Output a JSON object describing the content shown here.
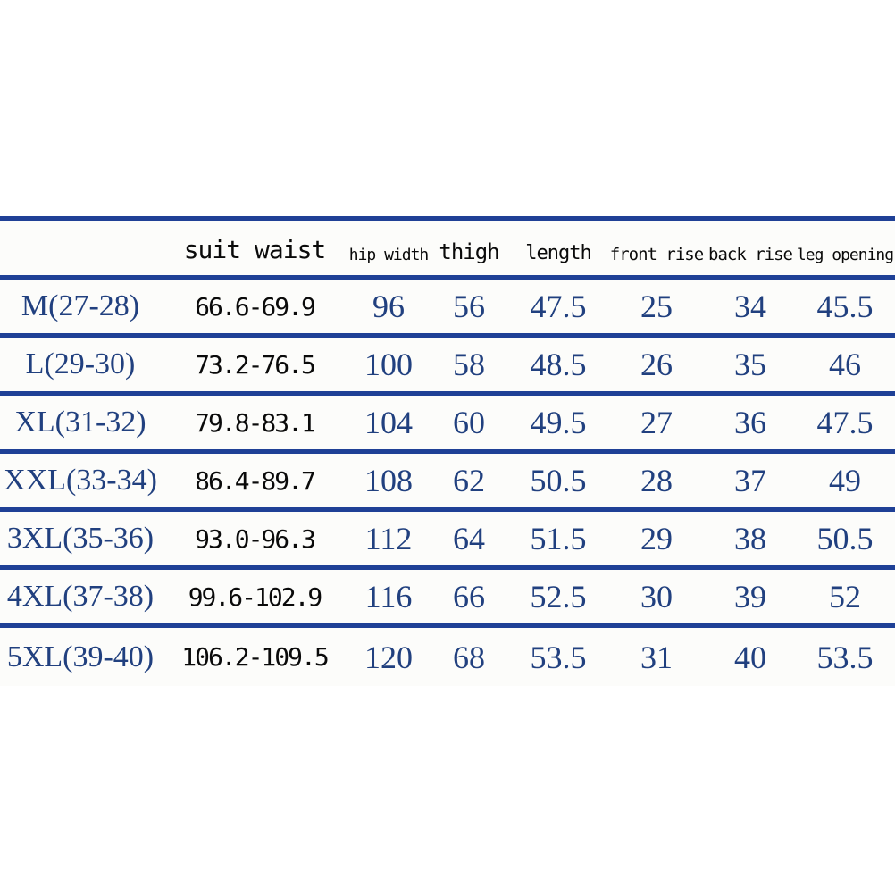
{
  "colors": {
    "line": "#1f4096",
    "value_text": "#21407f",
    "header_text": "#0a0a0a"
  },
  "table": {
    "columns": [
      {
        "key": "size",
        "label": ""
      },
      {
        "key": "suit-waist",
        "label": "suit waist"
      },
      {
        "key": "hip-width",
        "label": "hip width"
      },
      {
        "key": "thigh",
        "label": "thigh"
      },
      {
        "key": "length",
        "label": "length"
      },
      {
        "key": "front-rise",
        "label": "front rise"
      },
      {
        "key": "back-rise",
        "label": "back rise"
      },
      {
        "key": "leg-opening",
        "label": "leg opening"
      }
    ],
    "rows": [
      [
        "M(27-28)",
        "66.6-69.9",
        "96",
        "56",
        "47.5",
        "25",
        "34",
        "45.5"
      ],
      [
        "L(29-30)",
        "73.2-76.5",
        "100",
        "58",
        "48.5",
        "26",
        "35",
        "46"
      ],
      [
        "XL(31-32)",
        "79.8-83.1",
        "104",
        "60",
        "49.5",
        "27",
        "36",
        "47.5"
      ],
      [
        "XXL(33-34)",
        "86.4-89.7",
        "108",
        "62",
        "50.5",
        "28",
        "37",
        "49"
      ],
      [
        "3XL(35-36)",
        "93.0-96.3",
        "112",
        "64",
        "51.5",
        "29",
        "38",
        "50.5"
      ],
      [
        "4XL(37-38)",
        "99.6-102.9",
        "116",
        "66",
        "52.5",
        "30",
        "39",
        "52"
      ],
      [
        "5XL(39-40)",
        "106.2-109.5",
        "120",
        "68",
        "53.5",
        "31",
        "40",
        "53.5"
      ]
    ]
  },
  "chart_data": {
    "type": "table",
    "title": "",
    "columns": [
      "size",
      "suit waist",
      "hip width",
      "thigh",
      "length",
      "front rise",
      "back rise",
      "leg opening"
    ],
    "rows": [
      {
        "size": "M(27-28)",
        "suit_waist": "66.6-69.9",
        "hip_width": 96,
        "thigh": 56,
        "length": 47.5,
        "front_rise": 25,
        "back_rise": 34,
        "leg_opening": 45.5
      },
      {
        "size": "L(29-30)",
        "suit_waist": "73.2-76.5",
        "hip_width": 100,
        "thigh": 58,
        "length": 48.5,
        "front_rise": 26,
        "back_rise": 35,
        "leg_opening": 46
      },
      {
        "size": "XL(31-32)",
        "suit_waist": "79.8-83.1",
        "hip_width": 104,
        "thigh": 60,
        "length": 49.5,
        "front_rise": 27,
        "back_rise": 36,
        "leg_opening": 47.5
      },
      {
        "size": "XXL(33-34)",
        "suit_waist": "86.4-89.7",
        "hip_width": 108,
        "thigh": 62,
        "length": 50.5,
        "front_rise": 28,
        "back_rise": 37,
        "leg_opening": 49
      },
      {
        "size": "3XL(35-36)",
        "suit_waist": "93.0-96.3",
        "hip_width": 112,
        "thigh": 64,
        "length": 51.5,
        "front_rise": 29,
        "back_rise": 38,
        "leg_opening": 50.5
      },
      {
        "size": "4XL(37-38)",
        "suit_waist": "99.6-102.9",
        "hip_width": 116,
        "thigh": 66,
        "length": 52.5,
        "front_rise": 30,
        "back_rise": 39,
        "leg_opening": 52
      },
      {
        "size": "5XL(39-40)",
        "suit_waist": "106.2-109.5",
        "hip_width": 120,
        "thigh": 68,
        "length": 53.5,
        "front_rise": 31,
        "back_rise": 40,
        "leg_opening": 53.5
      }
    ]
  }
}
